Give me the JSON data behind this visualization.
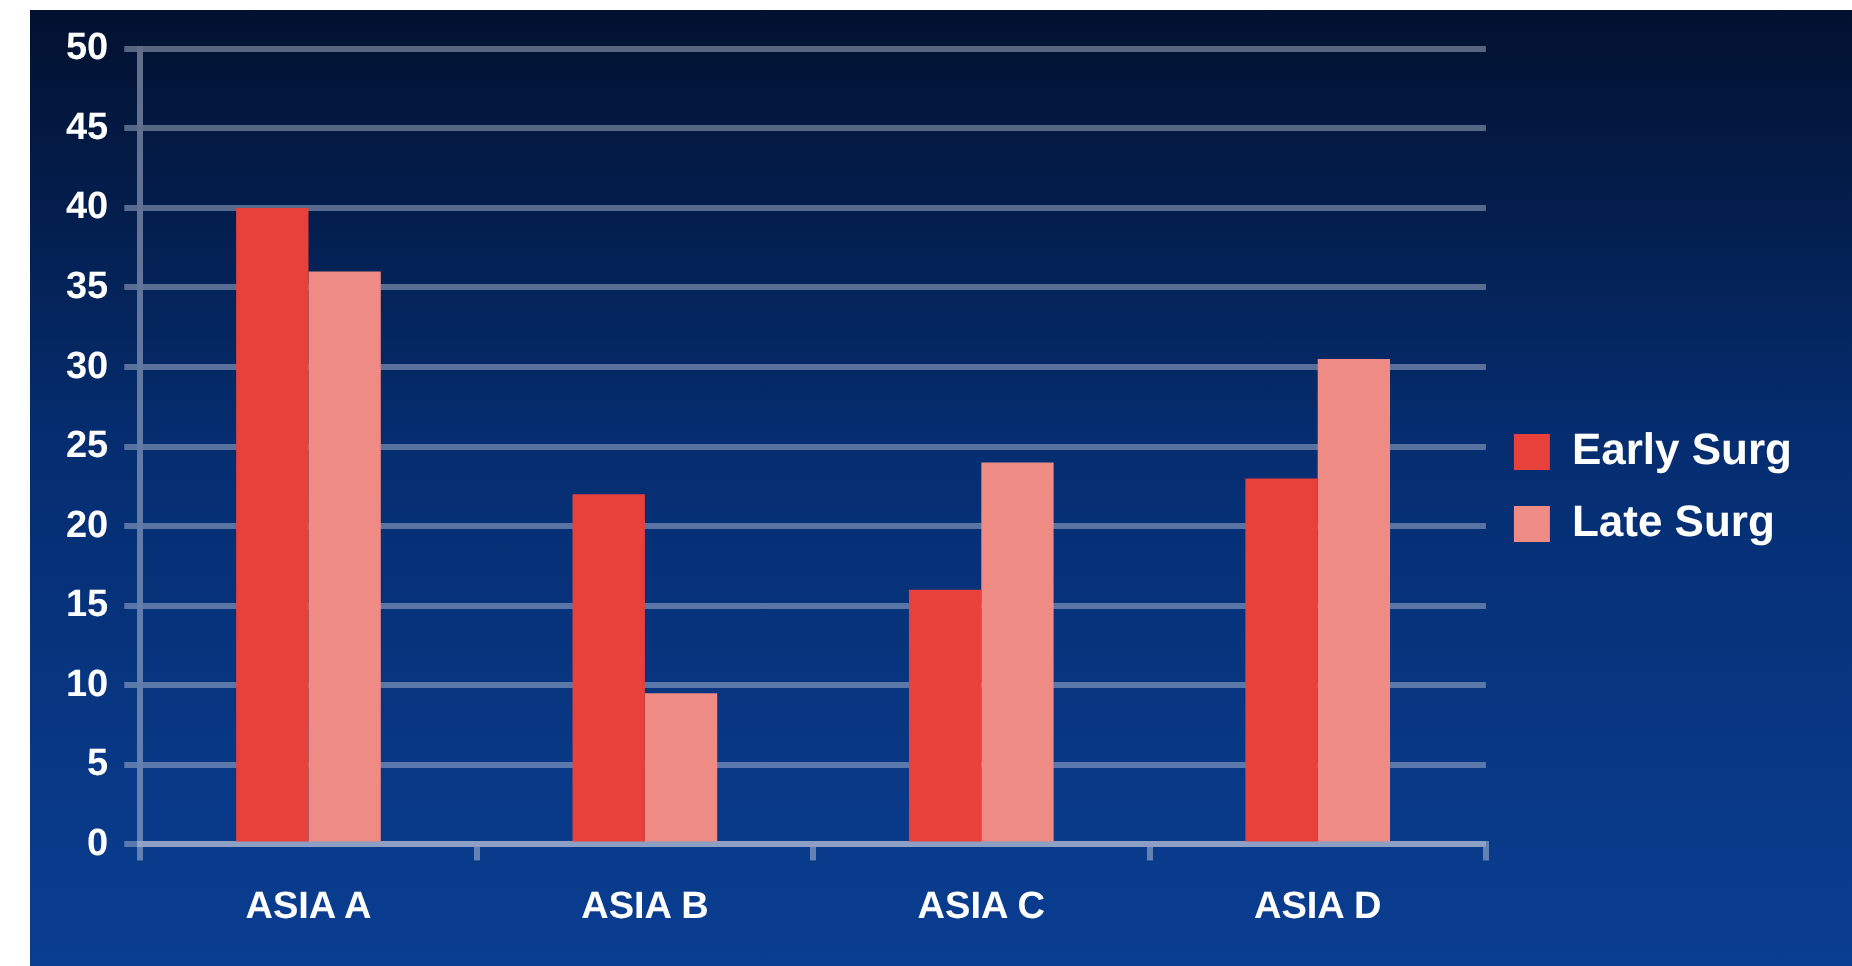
{
  "chart_data": {
    "type": "bar",
    "categories": [
      "ASIA A",
      "ASIA B",
      "ASIA C",
      "ASIA D"
    ],
    "series": [
      {
        "name": "Early Surg",
        "color": "#e8413c",
        "values": [
          40,
          22,
          16,
          23
        ]
      },
      {
        "name": "Late Surg",
        "color": "#ee8b84",
        "values": [
          36,
          9.5,
          24,
          30.5
        ]
      }
    ],
    "ylim": [
      0,
      50
    ],
    "yticks": [
      0,
      5,
      10,
      15,
      20,
      25,
      30,
      35,
      40,
      45,
      50
    ],
    "grid": "y",
    "legend": "right"
  }
}
